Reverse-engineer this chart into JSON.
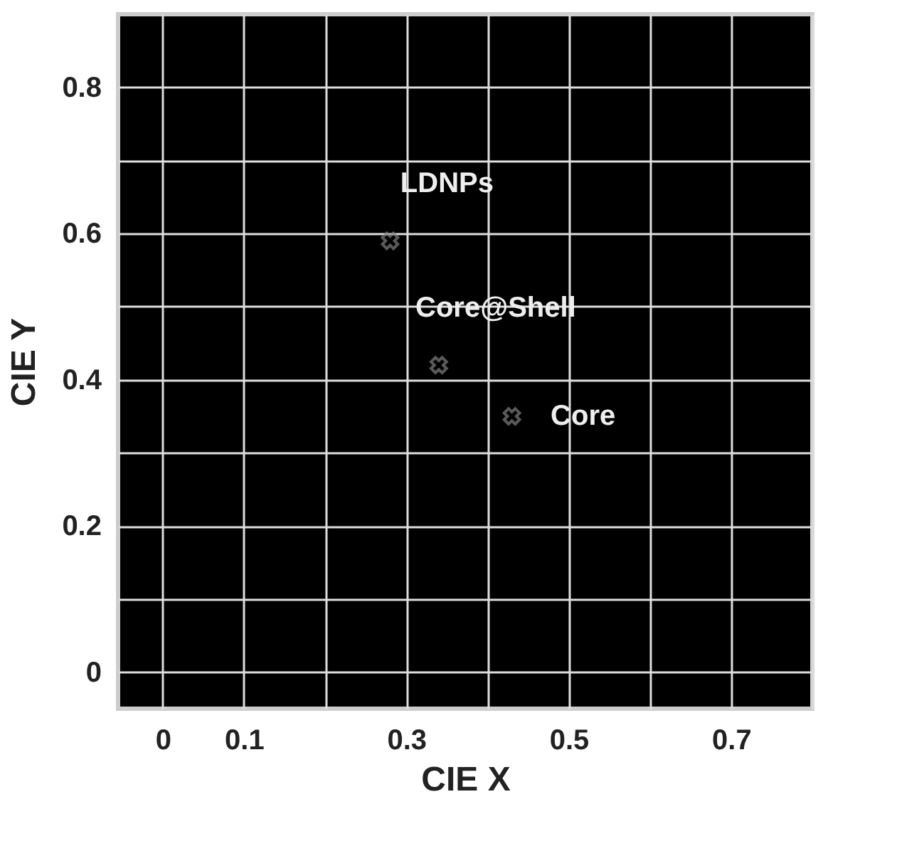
{
  "chart_data": {
    "type": "scatter",
    "xlabel": "CIE X",
    "ylabel": "CIE Y",
    "xlim": [
      -0.055,
      0.8
    ],
    "ylim": [
      -0.05,
      0.9
    ],
    "xticks": [
      0,
      0.1,
      {
        "value": 0.2,
        "label": null
      },
      0.3,
      {
        "value": 0.4,
        "label": null
      },
      0.5,
      {
        "value": 0.6,
        "label": null
      },
      0.7,
      {
        "value": 0.8,
        "label": null
      }
    ],
    "yticks": [
      0,
      {
        "value": 0.1,
        "label": null
      },
      0.2,
      {
        "value": 0.3,
        "label": null
      },
      0.4,
      {
        "value": 0.5,
        "label": null
      },
      0.6,
      {
        "value": 0.7,
        "label": null
      },
      0.8
    ],
    "grid": true,
    "marker": "cross",
    "series": [
      {
        "name": "LDNPs",
        "color": "#808080",
        "x": [
          0.28
        ],
        "values": [
          0.59
        ]
      },
      {
        "name": "Core@Shell",
        "color": "#808080",
        "x": [
          0.34
        ],
        "values": [
          0.42
        ]
      },
      {
        "name": "Core",
        "color": "#808080",
        "x": [
          0.43
        ],
        "values": [
          0.35
        ]
      }
    ]
  }
}
